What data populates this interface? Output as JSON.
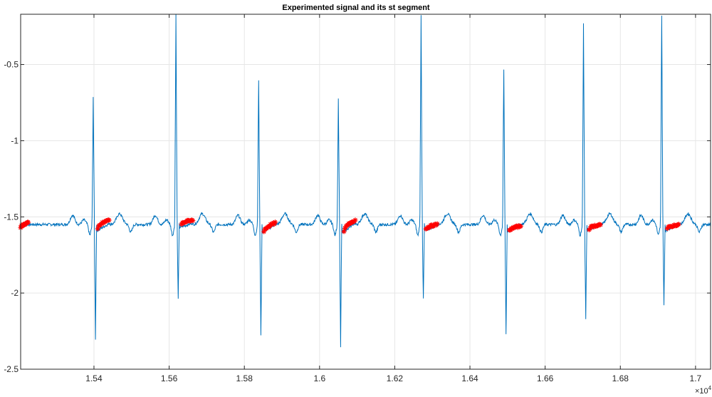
{
  "chart_data": {
    "type": "line",
    "title": "Experimented signal and its st segment",
    "xlabel": "",
    "ylabel": "",
    "x_tick_labels": [
      "1.54",
      "1.56",
      "1.58",
      "1.6",
      "1.62",
      "1.64",
      "1.66",
      "1.68",
      "1.7"
    ],
    "x_ticks": [
      15400,
      15600,
      15800,
      16000,
      16200,
      16400,
      16600,
      16800,
      17000
    ],
    "x_exponent_label": "×10",
    "x_exponent_power": "4",
    "y_tick_labels": [
      "-0.5",
      "-1",
      "-1.5",
      "-2",
      "-2.5"
    ],
    "y_ticks": [
      -0.5,
      -1,
      -1.5,
      -2,
      -2.5
    ],
    "xlim": [
      15205,
      17040
    ],
    "ylim": [
      -2.5,
      -0.17
    ],
    "grid": true,
    "colors": {
      "signal": "#0072BD",
      "st_segment": "#FF0000",
      "grid": "#E6E6E6",
      "axis": "#262626"
    },
    "baseline": -1.55,
    "beats": [
      {
        "r_peak_x": 15398,
        "r_peak_y": -0.71,
        "s_trough_y": -2.3,
        "st_start_x": 15410,
        "st_end_x": 15440,
        "st_y_start": -1.58,
        "st_y_end": -1.52
      },
      {
        "r_peak_x": 15618,
        "r_peak_y": -0.17,
        "s_trough_y": -2.03,
        "st_start_x": 15633,
        "st_end_x": 15663,
        "st_y_start": -1.55,
        "st_y_end": -1.52
      },
      {
        "r_peak_x": 15838,
        "r_peak_y": -0.61,
        "s_trough_y": -2.27,
        "st_start_x": 15852,
        "st_end_x": 15882,
        "st_y_start": -1.6,
        "st_y_end": -1.54
      },
      {
        "r_peak_x": 16050,
        "r_peak_y": -0.72,
        "s_trough_y": -2.35,
        "st_start_x": 16065,
        "st_end_x": 16095,
        "st_y_start": -1.6,
        "st_y_end": -1.52
      },
      {
        "r_peak_x": 16270,
        "r_peak_y": -0.17,
        "s_trough_y": -2.04,
        "st_start_x": 16283,
        "st_end_x": 16313,
        "st_y_start": -1.58,
        "st_y_end": -1.55
      },
      {
        "r_peak_x": 16490,
        "r_peak_y": -0.54,
        "s_trough_y": -2.27,
        "st_start_x": 16505,
        "st_end_x": 16535,
        "st_y_start": -1.59,
        "st_y_end": -1.56
      },
      {
        "r_peak_x": 16702,
        "r_peak_y": -0.23,
        "s_trough_y": -2.17,
        "st_start_x": 16717,
        "st_end_x": 16747,
        "st_y_start": -1.58,
        "st_y_end": -1.55
      },
      {
        "r_peak_x": 16910,
        "r_peak_y": -0.17,
        "s_trough_y": -2.08,
        "st_start_x": 16925,
        "st_end_x": 16955,
        "st_y_start": -1.58,
        "st_y_end": -1.55
      }
    ],
    "leading_st_segment": {
      "st_start_x": 15205,
      "st_end_x": 15225,
      "st_y_start": -1.57,
      "st_y_end": -1.54
    }
  }
}
